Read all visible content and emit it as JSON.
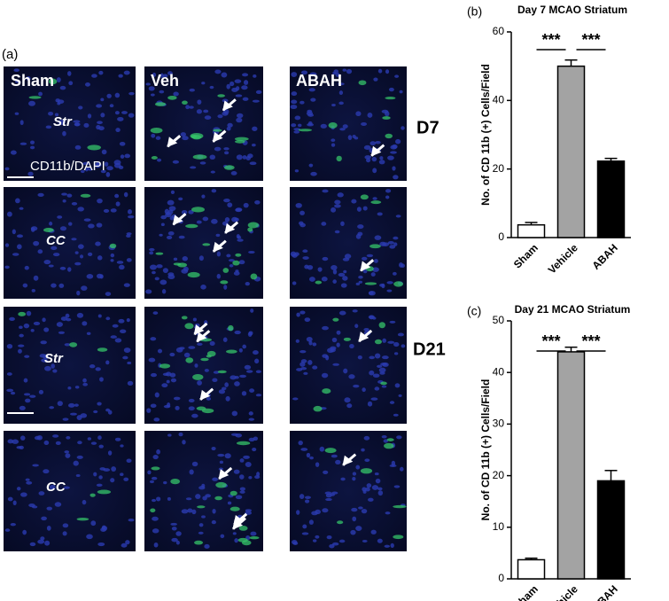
{
  "panel_a": {
    "label": "(a)",
    "columns": [
      "Sham",
      "Veh",
      "ABAH"
    ],
    "region_labels": [
      "Str",
      "CC",
      "Str",
      "CC"
    ],
    "day_labels": [
      "D7",
      "D21"
    ],
    "stain_label": "CD11b/DAPI"
  },
  "chart_data": [
    {
      "type": "bar",
      "panel_label": "(b)",
      "title": "Day 7 MCAO Striatum",
      "y_label": "No. of CD 11b (+) Cells/Field",
      "categories": [
        "Sham",
        "Vehicle",
        "ABAH"
      ],
      "values": [
        3.7,
        50,
        22.3
      ],
      "errors": [
        0.7,
        1.8,
        0.8
      ],
      "colors": [
        "#ffffff",
        "#a3a3a3",
        "#000000"
      ],
      "annotations": [
        "***",
        "***"
      ],
      "ylim": [
        0,
        60
      ],
      "yticks": [
        0,
        20,
        40,
        60
      ]
    },
    {
      "type": "bar",
      "panel_label": "(c)",
      "title": "Day 21 MCAO Striatum",
      "y_label": "No. of CD 11b (+) Cells/Field",
      "categories": [
        "Sham",
        "Vehicle",
        "ABAH"
      ],
      "values": [
        3.7,
        44,
        19
      ],
      "errors": [
        0.3,
        0.9,
        2
      ],
      "colors": [
        "#ffffff",
        "#a3a3a3",
        "#000000"
      ],
      "annotations": [
        "***",
        "***"
      ],
      "ylim": [
        0,
        50
      ],
      "yticks": [
        0,
        10,
        20,
        30,
        40,
        50
      ]
    }
  ]
}
